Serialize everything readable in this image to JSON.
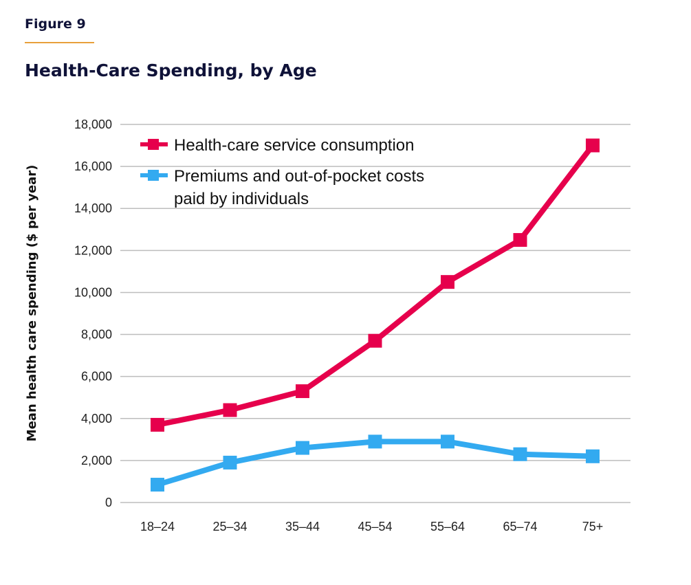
{
  "figure_label": "Figure 9",
  "colors": {
    "series_1": "#e6004c",
    "series_2": "#33aaf0",
    "grid": "#bdbdbd",
    "accent_rule": "#e8a03a",
    "title": "#0f1238"
  },
  "chart_data": {
    "type": "line",
    "title": "Health-Care Spending, by Age",
    "xlabel": "",
    "ylabel": "Mean health care spending ($ per year)",
    "categories": [
      "18–24",
      "25–34",
      "35–44",
      "45–54",
      "55–64",
      "65–74",
      "75+"
    ],
    "ylim": [
      0,
      18000
    ],
    "yticks": [
      0,
      2000,
      4000,
      6000,
      8000,
      10000,
      12000,
      14000,
      16000,
      18000
    ],
    "ytick_labels": [
      "0",
      "2,000",
      "4,000",
      "6,000",
      "8,000",
      "10,000",
      "12,000",
      "14,000",
      "16,000",
      "18,000"
    ],
    "grid": true,
    "legend_position": "top-left",
    "series": [
      {
        "name": "Health-care service consumption",
        "legend_lines": [
          "Health-care service consumption"
        ],
        "values": [
          3700,
          4400,
          5300,
          7700,
          10500,
          12500,
          17000
        ]
      },
      {
        "name": "Premiums and out-of-pocket costs paid by individuals",
        "legend_lines": [
          "Premiums and out-of-pocket costs",
          "paid by individuals"
        ],
        "values": [
          850,
          1900,
          2600,
          2900,
          2900,
          2300,
          2200
        ]
      }
    ]
  }
}
